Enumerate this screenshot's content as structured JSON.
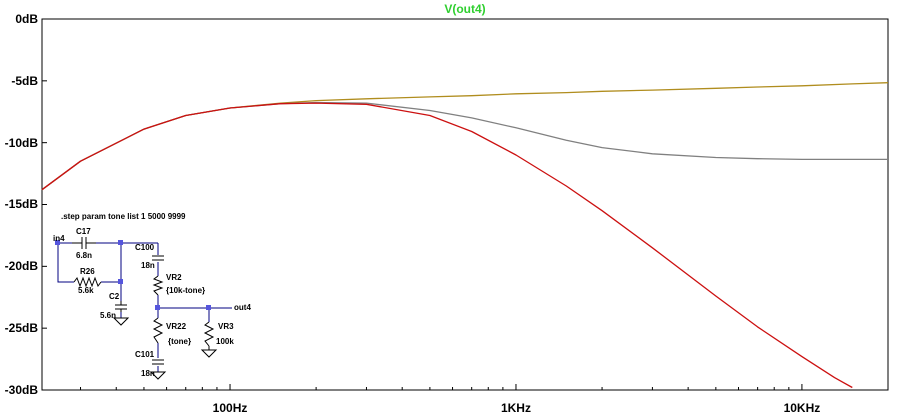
{
  "chart_data": {
    "type": "line",
    "title": "V(out4)",
    "x_scale": "log",
    "xlim_hz": [
      22,
      20000
    ],
    "ylim_db": [
      -30,
      0
    ],
    "grid": false,
    "x_ticks": [
      {
        "value": 100,
        "label": "100Hz"
      },
      {
        "value": 1000,
        "label": "1KHz"
      },
      {
        "value": 10000,
        "label": "10KHz"
      }
    ],
    "y_ticks": [
      {
        "value": 0,
        "label": "0dB"
      },
      {
        "value": -5,
        "label": "-5dB"
      },
      {
        "value": -10,
        "label": "-10dB"
      },
      {
        "value": -15,
        "label": "-15dB"
      },
      {
        "value": -20,
        "label": "-20dB"
      },
      {
        "value": -25,
        "label": "-25dB"
      },
      {
        "value": -30,
        "label": "-30dB"
      }
    ],
    "series": [
      {
        "color": "#b08d1e",
        "x": [
          22,
          30,
          50,
          70,
          100,
          150,
          200,
          300,
          500,
          700,
          1000,
          1500,
          2000,
          3000,
          5000,
          7000,
          10000,
          15000,
          20000
        ],
        "y": [
          -13.8,
          -11.5,
          -8.9,
          -7.8,
          -7.2,
          -6.8,
          -6.6,
          -6.45,
          -6.3,
          -6.2,
          -6.05,
          -5.95,
          -5.85,
          -5.75,
          -5.6,
          -5.5,
          -5.4,
          -5.25,
          -5.15
        ]
      },
      {
        "color": "#808080",
        "x": [
          22,
          30,
          50,
          70,
          100,
          150,
          200,
          300,
          500,
          700,
          1000,
          1500,
          2000,
          3000,
          5000,
          7000,
          10000,
          15000,
          20000
        ],
        "y": [
          -13.8,
          -11.5,
          -8.9,
          -7.8,
          -7.2,
          -6.85,
          -6.75,
          -6.8,
          -7.4,
          -8.0,
          -8.8,
          -9.8,
          -10.4,
          -10.9,
          -11.2,
          -11.3,
          -11.35,
          -11.35,
          -11.35
        ]
      },
      {
        "color": "#cc1010",
        "x": [
          22,
          30,
          50,
          70,
          100,
          150,
          200,
          300,
          500,
          700,
          1000,
          1500,
          2000,
          3000,
          5000,
          7000,
          10000,
          13000,
          15000
        ],
        "y": [
          -13.8,
          -11.5,
          -8.9,
          -7.8,
          -7.2,
          -6.85,
          -6.8,
          -6.9,
          -7.8,
          -9.1,
          -11.0,
          -13.5,
          -15.5,
          -18.5,
          -22.4,
          -24.9,
          -27.3,
          -29.0,
          -29.8
        ]
      }
    ]
  },
  "schematic": {
    "directive": ".step param tone list 1 5000 9999",
    "labels": {
      "in": "in4",
      "c17_name": "C17",
      "c17_value": "6.8n",
      "r26_name": "R26",
      "r26_value": "5.6k",
      "c2_name": "C2",
      "c2_value": "5.6n",
      "c100_name": "C100",
      "c100_value": "18n",
      "vr2_name": "VR2",
      "vr2_value": "{10k-tone}",
      "out": "out4",
      "vr22_name": "VR22",
      "vr22_value": "{tone}",
      "vr3_name": "VR3",
      "vr3_value": "100k",
      "c101_name": "C101",
      "c101_value": "18n"
    }
  }
}
